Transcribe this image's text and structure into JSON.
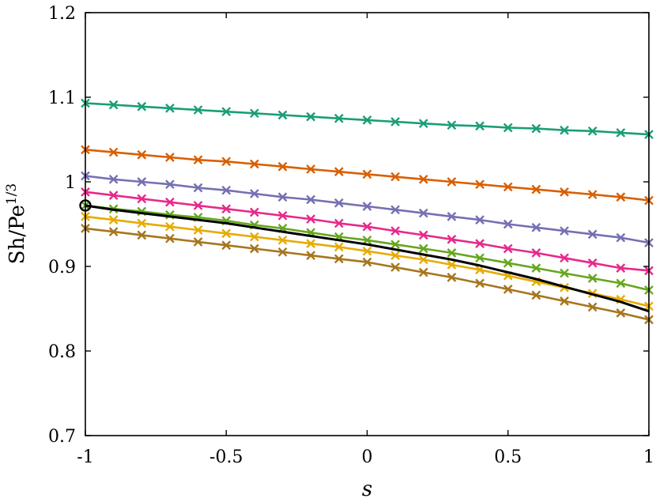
{
  "chart_data": {
    "type": "line",
    "title": "",
    "xlabel": "s",
    "ylabel": "Sh/Pe",
    "ylabel_sup": "1/3",
    "xlim": [
      -1,
      1
    ],
    "ylim": [
      0.7,
      1.2
    ],
    "xticks": [
      -1,
      -0.5,
      0,
      0.5,
      1
    ],
    "yticks": [
      0.7,
      0.8,
      0.9,
      1,
      1.1,
      1.2
    ],
    "xtick_labels": [
      "-1",
      "-0.5",
      "0",
      "0.5",
      "1"
    ],
    "ytick_labels": [
      "0.7",
      "0.8",
      "0.9",
      "1",
      "1.1",
      "1.2"
    ],
    "grid": false,
    "legend": "none",
    "x": [
      -1,
      -0.9,
      -0.8,
      -0.7,
      -0.6,
      -0.5,
      -0.4,
      -0.3,
      -0.2,
      -0.1,
      0,
      0.1,
      0.2,
      0.3,
      0.4,
      0.5,
      0.6,
      0.7,
      0.8,
      0.9,
      1
    ],
    "series": [
      {
        "color": "#1b9e77",
        "marker": "x",
        "values": [
          1.093,
          1.091,
          1.089,
          1.087,
          1.085,
          1.083,
          1.081,
          1.079,
          1.077,
          1.075,
          1.073,
          1.071,
          1.069,
          1.067,
          1.066,
          1.064,
          1.063,
          1.061,
          1.06,
          1.058,
          1.056
        ]
      },
      {
        "color": "#d95f02",
        "marker": "x",
        "values": [
          1.038,
          1.035,
          1.032,
          1.029,
          1.026,
          1.024,
          1.021,
          1.018,
          1.015,
          1.012,
          1.009,
          1.006,
          1.003,
          1.0,
          0.997,
          0.994,
          0.991,
          0.988,
          0.985,
          0.982,
          0.978
        ]
      },
      {
        "color": "#7570b3",
        "marker": "x",
        "values": [
          1.007,
          1.003,
          1.0,
          0.997,
          0.993,
          0.99,
          0.986,
          0.982,
          0.979,
          0.975,
          0.971,
          0.967,
          0.963,
          0.959,
          0.955,
          0.95,
          0.946,
          0.942,
          0.938,
          0.934,
          0.928
        ]
      },
      {
        "color": "#e7298a",
        "marker": "x",
        "values": [
          0.988,
          0.984,
          0.98,
          0.976,
          0.972,
          0.968,
          0.964,
          0.96,
          0.956,
          0.951,
          0.947,
          0.942,
          0.937,
          0.932,
          0.927,
          0.921,
          0.916,
          0.91,
          0.904,
          0.898,
          0.895
        ]
      },
      {
        "color": "#66a61e",
        "marker": "x",
        "values": [
          0.972,
          0.968,
          0.965,
          0.961,
          0.958,
          0.954,
          0.949,
          0.945,
          0.94,
          0.935,
          0.931,
          0.926,
          0.921,
          0.916,
          0.91,
          0.904,
          0.898,
          0.892,
          0.886,
          0.88,
          0.872
        ]
      },
      {
        "color": "#e6ab02",
        "marker": "x",
        "values": [
          0.959,
          0.955,
          0.951,
          0.947,
          0.943,
          0.939,
          0.935,
          0.931,
          0.927,
          0.923,
          0.918,
          0.913,
          0.908,
          0.902,
          0.896,
          0.889,
          0.882,
          0.875,
          0.868,
          0.861,
          0.853
        ]
      },
      {
        "color": "#a6761d",
        "marker": "x",
        "values": [
          0.945,
          0.941,
          0.937,
          0.933,
          0.929,
          0.925,
          0.921,
          0.917,
          0.913,
          0.909,
          0.905,
          0.899,
          0.893,
          0.887,
          0.88,
          0.873,
          0.866,
          0.859,
          0.852,
          0.845,
          0.837
        ]
      },
      {
        "color": "#000000",
        "marker": "none",
        "start_marker": "circle",
        "values": [
          0.972,
          0.967,
          0.963,
          0.959,
          0.955,
          0.951,
          0.946,
          0.941,
          0.936,
          0.931,
          0.926,
          0.92,
          0.914,
          0.908,
          0.901,
          0.893,
          0.885,
          0.876,
          0.867,
          0.858,
          0.847
        ]
      }
    ]
  }
}
